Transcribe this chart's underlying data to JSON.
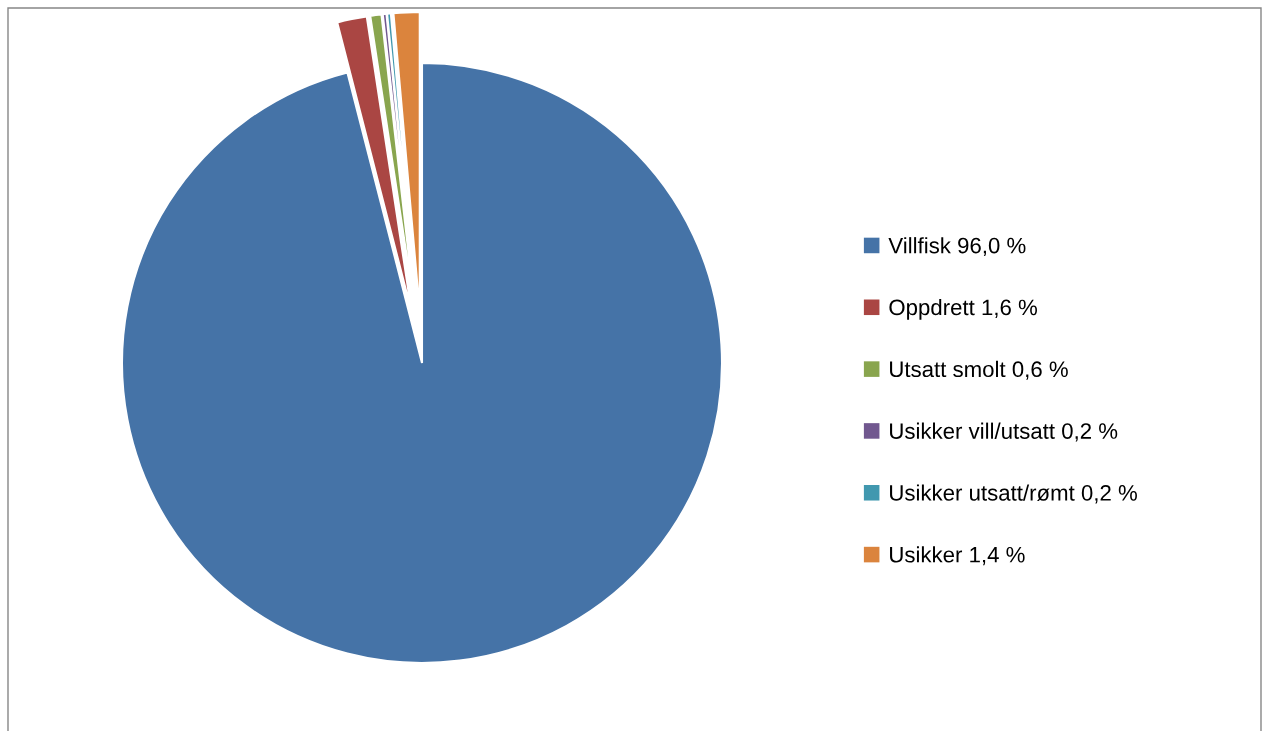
{
  "chart_data": {
    "type": "pie",
    "categories": [
      "Villfisk",
      "Oppdrett",
      "Utsatt smolt",
      "Usikker vill/utsatt",
      "Usikker utsatt/rømt",
      "Usikker"
    ],
    "values": [
      96.0,
      1.6,
      0.6,
      0.2,
      0.2,
      1.4
    ],
    "value_labels": [
      "96,0 %",
      "1,6 %",
      "0,6 %",
      "0,2 %",
      "0,2 %",
      "1,4 %"
    ],
    "colors": [
      "#4573a7",
      "#aa4643",
      "#89a54e",
      "#71588f",
      "#4198af",
      "#db843d"
    ],
    "legend": "right"
  }
}
